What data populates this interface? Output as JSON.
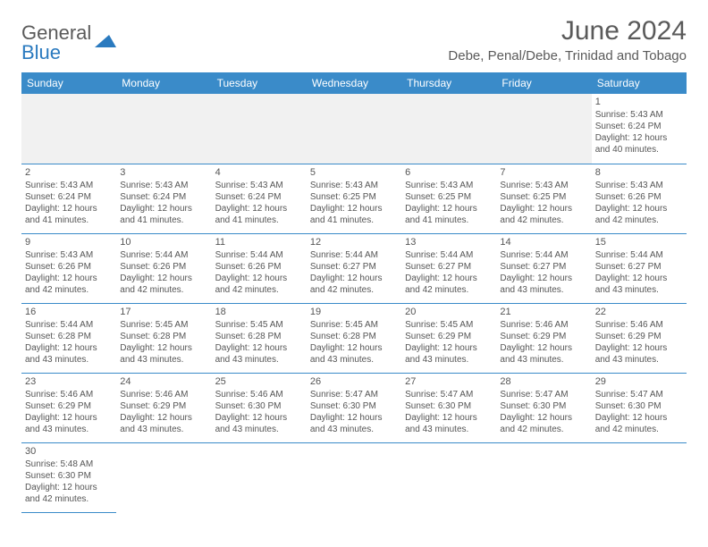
{
  "logo": {
    "text1": "General",
    "text2": "Blue",
    "shape_color": "#2a7abf"
  },
  "header": {
    "month_title": "June 2024",
    "location": "Debe, Penal/Debe, Trinidad and Tobago"
  },
  "colors": {
    "header_bg": "#3a8bc9",
    "header_text": "#ffffff",
    "border": "#3a8bc9",
    "blank_bg": "#f1f1f1",
    "body_text": "#555555",
    "title_text": "#5a5a5a"
  },
  "day_headers": [
    "Sunday",
    "Monday",
    "Tuesday",
    "Wednesday",
    "Thursday",
    "Friday",
    "Saturday"
  ],
  "leading_blanks": 6,
  "days": [
    {
      "n": 1,
      "sunrise": "5:43 AM",
      "sunset": "6:24 PM",
      "daylight": "12 hours and 40 minutes."
    },
    {
      "n": 2,
      "sunrise": "5:43 AM",
      "sunset": "6:24 PM",
      "daylight": "12 hours and 41 minutes."
    },
    {
      "n": 3,
      "sunrise": "5:43 AM",
      "sunset": "6:24 PM",
      "daylight": "12 hours and 41 minutes."
    },
    {
      "n": 4,
      "sunrise": "5:43 AM",
      "sunset": "6:24 PM",
      "daylight": "12 hours and 41 minutes."
    },
    {
      "n": 5,
      "sunrise": "5:43 AM",
      "sunset": "6:25 PM",
      "daylight": "12 hours and 41 minutes."
    },
    {
      "n": 6,
      "sunrise": "5:43 AM",
      "sunset": "6:25 PM",
      "daylight": "12 hours and 41 minutes."
    },
    {
      "n": 7,
      "sunrise": "5:43 AM",
      "sunset": "6:25 PM",
      "daylight": "12 hours and 42 minutes."
    },
    {
      "n": 8,
      "sunrise": "5:43 AM",
      "sunset": "6:26 PM",
      "daylight": "12 hours and 42 minutes."
    },
    {
      "n": 9,
      "sunrise": "5:43 AM",
      "sunset": "6:26 PM",
      "daylight": "12 hours and 42 minutes."
    },
    {
      "n": 10,
      "sunrise": "5:44 AM",
      "sunset": "6:26 PM",
      "daylight": "12 hours and 42 minutes."
    },
    {
      "n": 11,
      "sunrise": "5:44 AM",
      "sunset": "6:26 PM",
      "daylight": "12 hours and 42 minutes."
    },
    {
      "n": 12,
      "sunrise": "5:44 AM",
      "sunset": "6:27 PM",
      "daylight": "12 hours and 42 minutes."
    },
    {
      "n": 13,
      "sunrise": "5:44 AM",
      "sunset": "6:27 PM",
      "daylight": "12 hours and 42 minutes."
    },
    {
      "n": 14,
      "sunrise": "5:44 AM",
      "sunset": "6:27 PM",
      "daylight": "12 hours and 43 minutes."
    },
    {
      "n": 15,
      "sunrise": "5:44 AM",
      "sunset": "6:27 PM",
      "daylight": "12 hours and 43 minutes."
    },
    {
      "n": 16,
      "sunrise": "5:44 AM",
      "sunset": "6:28 PM",
      "daylight": "12 hours and 43 minutes."
    },
    {
      "n": 17,
      "sunrise": "5:45 AM",
      "sunset": "6:28 PM",
      "daylight": "12 hours and 43 minutes."
    },
    {
      "n": 18,
      "sunrise": "5:45 AM",
      "sunset": "6:28 PM",
      "daylight": "12 hours and 43 minutes."
    },
    {
      "n": 19,
      "sunrise": "5:45 AM",
      "sunset": "6:28 PM",
      "daylight": "12 hours and 43 minutes."
    },
    {
      "n": 20,
      "sunrise": "5:45 AM",
      "sunset": "6:29 PM",
      "daylight": "12 hours and 43 minutes."
    },
    {
      "n": 21,
      "sunrise": "5:46 AM",
      "sunset": "6:29 PM",
      "daylight": "12 hours and 43 minutes."
    },
    {
      "n": 22,
      "sunrise": "5:46 AM",
      "sunset": "6:29 PM",
      "daylight": "12 hours and 43 minutes."
    },
    {
      "n": 23,
      "sunrise": "5:46 AM",
      "sunset": "6:29 PM",
      "daylight": "12 hours and 43 minutes."
    },
    {
      "n": 24,
      "sunrise": "5:46 AM",
      "sunset": "6:29 PM",
      "daylight": "12 hours and 43 minutes."
    },
    {
      "n": 25,
      "sunrise": "5:46 AM",
      "sunset": "6:30 PM",
      "daylight": "12 hours and 43 minutes."
    },
    {
      "n": 26,
      "sunrise": "5:47 AM",
      "sunset": "6:30 PM",
      "daylight": "12 hours and 43 minutes."
    },
    {
      "n": 27,
      "sunrise": "5:47 AM",
      "sunset": "6:30 PM",
      "daylight": "12 hours and 43 minutes."
    },
    {
      "n": 28,
      "sunrise": "5:47 AM",
      "sunset": "6:30 PM",
      "daylight": "12 hours and 42 minutes."
    },
    {
      "n": 29,
      "sunrise": "5:47 AM",
      "sunset": "6:30 PM",
      "daylight": "12 hours and 42 minutes."
    },
    {
      "n": 30,
      "sunrise": "5:48 AM",
      "sunset": "6:30 PM",
      "daylight": "12 hours and 42 minutes."
    }
  ],
  "labels": {
    "sunrise": "Sunrise:",
    "sunset": "Sunset:",
    "daylight": "Daylight:"
  }
}
